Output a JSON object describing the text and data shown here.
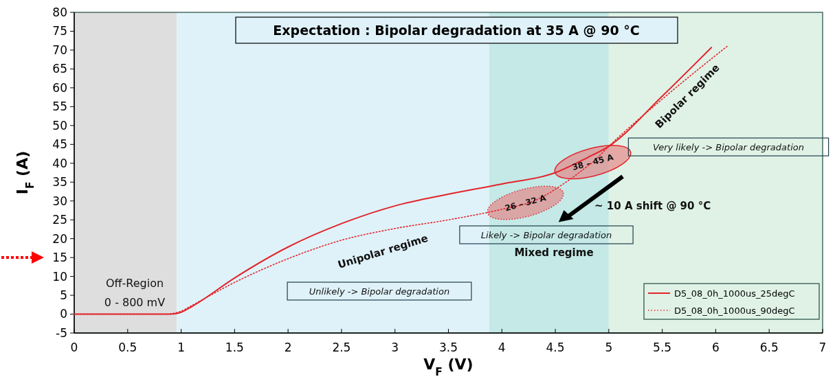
{
  "chart_data": {
    "type": "line",
    "title": "Expectation : Bipolar degradation at 35 A @ 90 °C",
    "xlabel": "V$_{F}$ (V)",
    "ylabel": "I$_{F}$ (A)",
    "xlim": [
      0,
      7
    ],
    "xticks": [
      0,
      0.5,
      1,
      1.5,
      2,
      2.5,
      3,
      3.5,
      4,
      4.5,
      5,
      5.5,
      6,
      6.5,
      7
    ],
    "ylim": [
      -5,
      80
    ],
    "yticks": [
      -5,
      0,
      5,
      10,
      15,
      20,
      25,
      30,
      35,
      40,
      45,
      50,
      55,
      60,
      65,
      70,
      75,
      80
    ],
    "grid": false,
    "legend": "bottom right",
    "marker": "none",
    "series": [
      {
        "name": "D5_08_0h_1000us_25degC",
        "color": "#e3242b",
        "line_style": "solid",
        "x": [
          0,
          0.9,
          1.0,
          1.1,
          1.5,
          2,
          2.5,
          3,
          3.5,
          4,
          4.5,
          4.8,
          5,
          5.5,
          5.96
        ],
        "values": [
          0,
          0,
          0.5,
          2,
          9.6,
          17.8,
          24,
          28.7,
          31.8,
          34.5,
          37.5,
          41.5,
          44.5,
          57.8,
          70.7
        ]
      },
      {
        "name": "D5_08_0h_1000us_90degC",
        "color": "#e3242b",
        "line_style": "dotted",
        "x": [
          0,
          0.85,
          1.0,
          1.1,
          1.5,
          2,
          2.5,
          3,
          3.5,
          4,
          4.3,
          4.6,
          4.8,
          4.85,
          5,
          5.5,
          6.12
        ],
        "values": [
          0,
          0,
          0.8,
          2.3,
          8.4,
          14.7,
          19.6,
          22.7,
          25,
          27.8,
          30,
          35,
          39.2,
          40.3,
          44.5,
          57,
          71.3
        ]
      }
    ],
    "bands": [
      {
        "axis": "x",
        "from": 0,
        "to": 0.96,
        "color": "#dedede"
      },
      {
        "axis": "x",
        "from": 0.96,
        "to": 3.88,
        "color": "#dff2f9"
      },
      {
        "axis": "x",
        "from": 3.88,
        "to": 5,
        "color": "#c4e9e6"
      },
      {
        "axis": "x",
        "from": 5,
        "to": 7,
        "color": "#e0f2e6"
      }
    ],
    "annotations": [
      "Off-Region",
      "0 - 800 mV",
      "Unipolar regime",
      "Unlikely -> Bipolar degradation",
      "Likely -> Bipolar degradation",
      "Mixed regime",
      {
        "text": "26 – 32 A",
        "x": 4.22,
        "y": 29.5
      },
      {
        "text": "38 – 45 A",
        "x": 4.85,
        "y": 40.3
      },
      "~ 10 A shift @ 90 °C",
      "Bipolar regime",
      "Very likely -> Bipolar degradation"
    ]
  }
}
